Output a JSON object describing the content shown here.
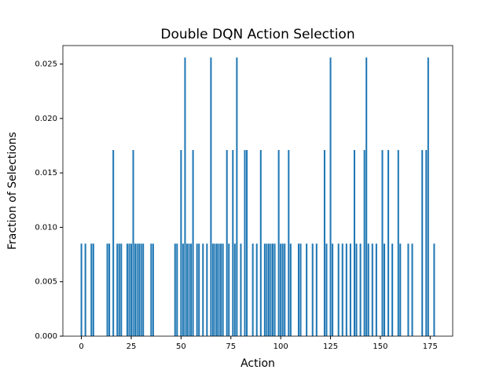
{
  "chart_data": {
    "type": "bar",
    "title": "Double DQN Action Selection",
    "xlabel": "Action",
    "ylabel": "Fraction of Selections",
    "color": "#1f77b4",
    "x": [
      0,
      1,
      2,
      3,
      4,
      5,
      6,
      7,
      8,
      9,
      10,
      11,
      12,
      13,
      14,
      15,
      16,
      17,
      18,
      19,
      20,
      21,
      22,
      23,
      24,
      25,
      26,
      27,
      28,
      29,
      30,
      31,
      32,
      33,
      34,
      35,
      36,
      37,
      38,
      39,
      40,
      41,
      42,
      43,
      44,
      45,
      46,
      47,
      48,
      49,
      50,
      51,
      52,
      53,
      54,
      55,
      56,
      57,
      58,
      59,
      60,
      61,
      62,
      63,
      64,
      65,
      66,
      67,
      68,
      69,
      70,
      71,
      72,
      73,
      74,
      75,
      76,
      77,
      78,
      79,
      80,
      81,
      82,
      83,
      84,
      85,
      86,
      87,
      88,
      89,
      90,
      91,
      92,
      93,
      94,
      95,
      96,
      97,
      98,
      99,
      100,
      101,
      102,
      103,
      104,
      105,
      106,
      107,
      108,
      109,
      110,
      111,
      112,
      113,
      114,
      115,
      116,
      117,
      118,
      119,
      120,
      121,
      122,
      123,
      124,
      125,
      126,
      127,
      128,
      129,
      130,
      131,
      132,
      133,
      134,
      135,
      136,
      137,
      138,
      139,
      140,
      141,
      142,
      143,
      144,
      145,
      146,
      147,
      148,
      149,
      150,
      151,
      152,
      153,
      154,
      155,
      156,
      157,
      158,
      159,
      160,
      161,
      162,
      163,
      164,
      165,
      166,
      167,
      168,
      169,
      170,
      171,
      172,
      173,
      174,
      175,
      176,
      177
    ],
    "values": [
      0.0085,
      0,
      0.0085,
      0,
      0,
      0.0085,
      0.0085,
      0,
      0,
      0,
      0,
      0,
      0,
      0.0085,
      0.0085,
      0,
      0.0171,
      0,
      0.0085,
      0.0085,
      0.0085,
      0,
      0,
      0.0085,
      0.0085,
      0.0085,
      0.0171,
      0.0085,
      0.0085,
      0.0085,
      0.0085,
      0.0085,
      0,
      0,
      0,
      0.0085,
      0.0085,
      0,
      0,
      0,
      0,
      0,
      0,
      0,
      0,
      0,
      0,
      0.0085,
      0.0085,
      0,
      0.0171,
      0.0085,
      0.0256,
      0.0085,
      0.0085,
      0.0085,
      0.0171,
      0,
      0.0085,
      0.0085,
      0,
      0.0085,
      0,
      0.0085,
      0,
      0.0256,
      0.0085,
      0.0085,
      0.0085,
      0.0085,
      0.0085,
      0.0085,
      0,
      0.0171,
      0.0085,
      0,
      0.0171,
      0.0085,
      0.0256,
      0,
      0.0085,
      0,
      0.0171,
      0.0171,
      0,
      0,
      0.0085,
      0,
      0.0085,
      0,
      0.0171,
      0,
      0.0085,
      0.0085,
      0.0085,
      0.0085,
      0.0085,
      0.0085,
      0,
      0.0171,
      0.0085,
      0.0085,
      0.0085,
      0,
      0.0171,
      0.0085,
      0,
      0,
      0,
      0.0085,
      0.0085,
      0,
      0,
      0.0085,
      0,
      0,
      0.0085,
      0,
      0.0085,
      0,
      0,
      0,
      0.0171,
      0.0085,
      0,
      0.0256,
      0.0085,
      0,
      0,
      0.0085,
      0,
      0.0085,
      0,
      0.0085,
      0,
      0.0085,
      0,
      0.0171,
      0.0085,
      0,
      0.0085,
      0,
      0.0171,
      0.0256,
      0.0085,
      0,
      0.0085,
      0,
      0.0085,
      0,
      0,
      0.0171,
      0.0085,
      0,
      0.0171,
      0,
      0.0085,
      0,
      0,
      0.0171,
      0.0085,
      0,
      0,
      0,
      0.0085,
      0,
      0.0085,
      0,
      0,
      0,
      0,
      0.0171,
      0,
      0.0171,
      0.0256,
      0,
      0,
      0.0085
    ],
    "xlim": [
      -9.3,
      186.3
    ],
    "xticks": [
      0,
      25,
      50,
      75,
      100,
      125,
      150,
      175
    ],
    "ylim": [
      0,
      0.0267
    ],
    "yticks": [
      {
        "value": 0,
        "label": "0.000"
      },
      {
        "value": 0.005,
        "label": "0.005"
      },
      {
        "value": 0.01,
        "label": "0.010"
      },
      {
        "value": 0.015,
        "label": "0.015"
      },
      {
        "value": 0.02,
        "label": "0.020"
      },
      {
        "value": 0.025,
        "label": "0.025"
      }
    ]
  }
}
